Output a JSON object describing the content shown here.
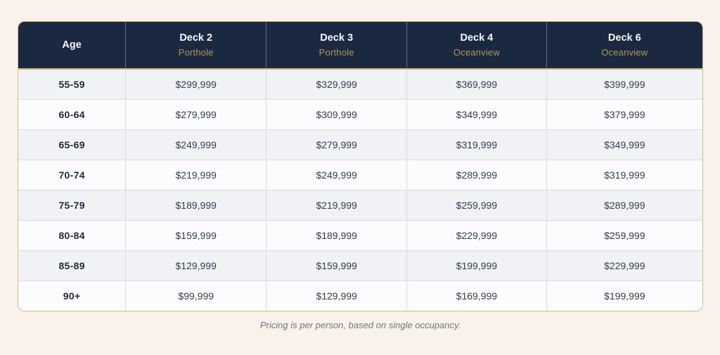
{
  "colors": {
    "page_background": "#f8f2ea",
    "header_background": "#1b2940",
    "accent_gold": "#b2955e",
    "outer_border_tan": "#d2bd92",
    "row_stripe_gray": "#f1f2f5",
    "row_stripe_white": "#fcfcfe",
    "cell_border": "#d8dade",
    "price_text": "#333d4d",
    "footnote_text": "#6f7680"
  },
  "chart_data": {
    "type": "table",
    "title": "",
    "columns": [
      {
        "label": "Age",
        "sublabel": ""
      },
      {
        "label": "Deck 2",
        "sublabel": "Porthole"
      },
      {
        "label": "Deck 3",
        "sublabel": "Porthole"
      },
      {
        "label": "Deck 4",
        "sublabel": "Oceanview"
      },
      {
        "label": "Deck 6",
        "sublabel": "Oceanview"
      }
    ],
    "rows": [
      {
        "age": "55-59",
        "prices": [
          "$299,999",
          "$329,999",
          "$369,999",
          "$399,999"
        ]
      },
      {
        "age": "60-64",
        "prices": [
          "$279,999",
          "$309,999",
          "$349,999",
          "$379,999"
        ]
      },
      {
        "age": "65-69",
        "prices": [
          "$249,999",
          "$279,999",
          "$319,999",
          "$349,999"
        ]
      },
      {
        "age": "70-74",
        "prices": [
          "$219,999",
          "$249,999",
          "$289,999",
          "$319,999"
        ]
      },
      {
        "age": "75-79",
        "prices": [
          "$189,999",
          "$219,999",
          "$259,999",
          "$289,999"
        ]
      },
      {
        "age": "80-84",
        "prices": [
          "$159,999",
          "$189,999",
          "$229,999",
          "$259,999"
        ]
      },
      {
        "age": "85-89",
        "prices": [
          "$129,999",
          "$159,999",
          "$199,999",
          "$229,999"
        ]
      },
      {
        "age": "90+",
        "prices": [
          "$99,999",
          "$129,999",
          "$169,999",
          "$199,999"
        ]
      }
    ],
    "footnote": "Pricing is per person, based on single occupancy."
  },
  "footnote": "Pricing is per person, based on single occupancy."
}
